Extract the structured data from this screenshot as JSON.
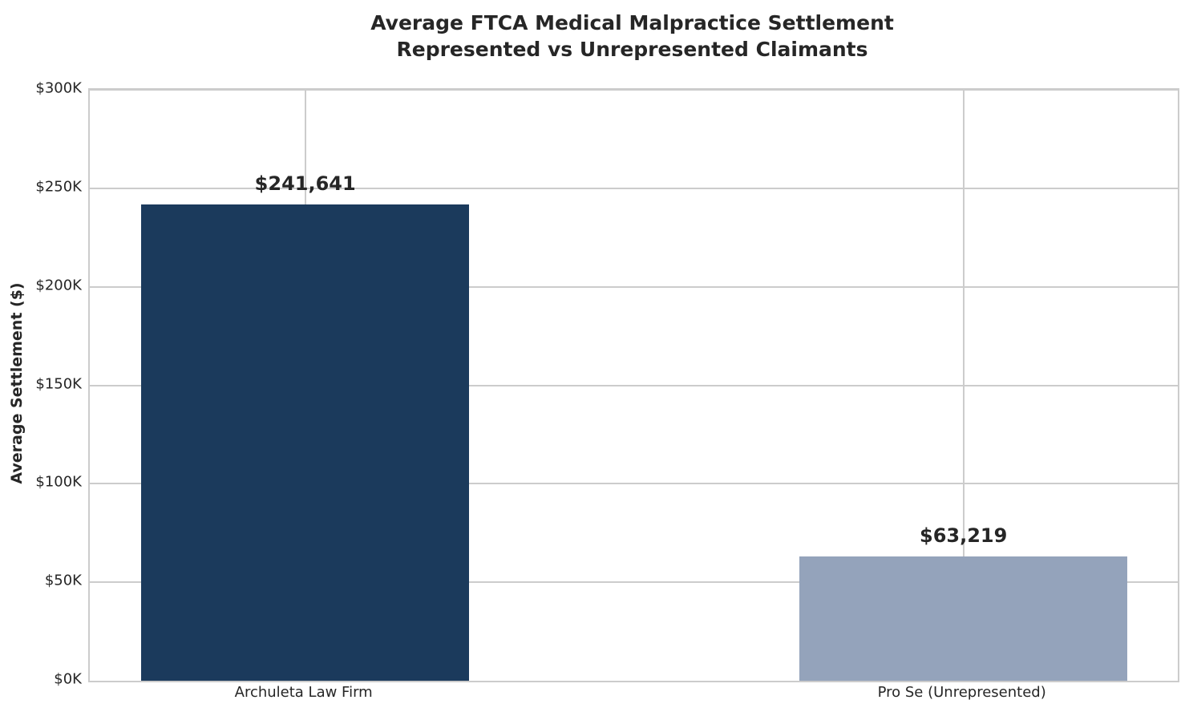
{
  "chart_data": {
    "type": "bar",
    "title_line1": "Average FTCA Medical Malpractice Settlement",
    "title_line2": "Represented vs Unrepresented Claimants",
    "ylabel": "Average Settlement ($)",
    "xlabel": "",
    "categories": [
      "Archuleta Law Firm",
      "Pro Se (Unrepresented)"
    ],
    "values": [
      241641,
      63219
    ],
    "value_labels": [
      "$241,641",
      "$63,219"
    ],
    "bar_colors": [
      "#1b3a5c",
      "#94a3bb"
    ],
    "ylim": [
      0,
      300000
    ],
    "yticks": [
      {
        "value": 0,
        "label": "$0K"
      },
      {
        "value": 50000,
        "label": "$50K"
      },
      {
        "value": 100000,
        "label": "$100K"
      },
      {
        "value": 150000,
        "label": "$150K"
      },
      {
        "value": 200000,
        "label": "$200K"
      },
      {
        "value": 250000,
        "label": "$250K"
      },
      {
        "value": 300000,
        "label": "$300K"
      }
    ],
    "grid": true,
    "legend": false,
    "colors": {
      "text": "#262626",
      "gridline": "#cccccc",
      "background": "#ffffff"
    }
  }
}
